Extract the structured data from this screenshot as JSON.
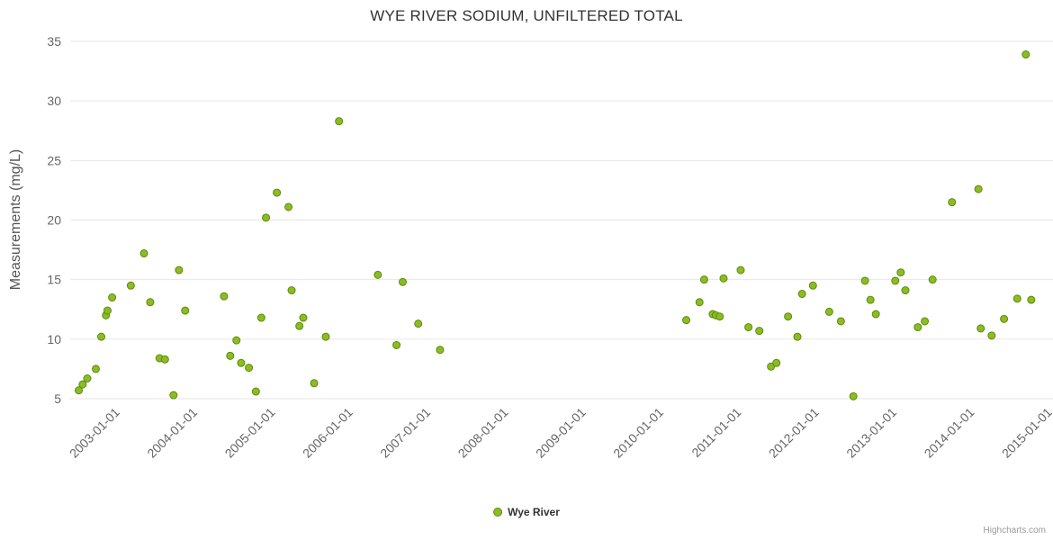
{
  "chart_data": {
    "type": "scatter",
    "title": "WYE RIVER SODIUM, UNFILTERED TOTAL",
    "ylabel": "Measurements (mg/L)",
    "xlabel": "",
    "ylim": [
      5,
      35
    ],
    "y_ticks": [
      5,
      10,
      15,
      20,
      25,
      30,
      35
    ],
    "xlim": [
      2002.4,
      2015.05
    ],
    "x_ticks": [
      {
        "value": 2003,
        "label": "2003-01-01"
      },
      {
        "value": 2004,
        "label": "2004-01-01"
      },
      {
        "value": 2005,
        "label": "2005-01-01"
      },
      {
        "value": 2006,
        "label": "2006-01-01"
      },
      {
        "value": 2007,
        "label": "2007-01-01"
      },
      {
        "value": 2008,
        "label": "2008-01-01"
      },
      {
        "value": 2009,
        "label": "2009-01-01"
      },
      {
        "value": 2010,
        "label": "2010-01-01"
      },
      {
        "value": 2011,
        "label": "2011-01-01"
      },
      {
        "value": 2012,
        "label": "2012-01-01"
      },
      {
        "value": 2013,
        "label": "2013-01-01"
      },
      {
        "value": 2014,
        "label": "2014-01-01"
      },
      {
        "value": 2015,
        "label": "2015-01-01"
      }
    ],
    "grid": "horizontal",
    "gridline_color": "#e6e6e6",
    "axis_label_color": "#666666",
    "legend_position": "bottom-center",
    "credits": "Highcharts.com",
    "series": [
      {
        "name": "Wye River",
        "color": "#8bbc21",
        "border_color": "#5d8a10",
        "marker_radius": 4,
        "points": [
          [
            2002.51,
            5.7
          ],
          [
            2002.56,
            6.2
          ],
          [
            2002.62,
            6.7
          ],
          [
            2002.73,
            7.5
          ],
          [
            2002.8,
            10.2
          ],
          [
            2002.86,
            12.0
          ],
          [
            2002.88,
            12.4
          ],
          [
            2002.94,
            13.5
          ],
          [
            2003.18,
            14.5
          ],
          [
            2003.35,
            17.2
          ],
          [
            2003.43,
            13.1
          ],
          [
            2003.55,
            8.4
          ],
          [
            2003.62,
            8.3
          ],
          [
            2003.73,
            5.3
          ],
          [
            2003.8,
            15.8
          ],
          [
            2003.88,
            12.4
          ],
          [
            2004.38,
            13.6
          ],
          [
            2004.46,
            8.6
          ],
          [
            2004.54,
            9.9
          ],
          [
            2004.6,
            8.0
          ],
          [
            2004.7,
            7.6
          ],
          [
            2004.79,
            5.6
          ],
          [
            2004.86,
            11.8
          ],
          [
            2004.92,
            20.2
          ],
          [
            2005.06,
            22.3
          ],
          [
            2005.21,
            21.1
          ],
          [
            2005.25,
            14.1
          ],
          [
            2005.35,
            11.1
          ],
          [
            2005.4,
            11.8
          ],
          [
            2005.54,
            6.3
          ],
          [
            2005.69,
            10.2
          ],
          [
            2005.86,
            28.3
          ],
          [
            2006.36,
            15.4
          ],
          [
            2006.6,
            9.5
          ],
          [
            2006.68,
            14.8
          ],
          [
            2006.88,
            11.3
          ],
          [
            2007.16,
            9.1
          ],
          [
            2010.33,
            11.6
          ],
          [
            2010.5,
            13.1
          ],
          [
            2010.56,
            15.0
          ],
          [
            2010.67,
            12.1
          ],
          [
            2010.71,
            12.0
          ],
          [
            2010.76,
            11.9
          ],
          [
            2010.81,
            15.1
          ],
          [
            2011.03,
            15.8
          ],
          [
            2011.13,
            11.0
          ],
          [
            2011.27,
            10.7
          ],
          [
            2011.42,
            7.7
          ],
          [
            2011.49,
            8.0
          ],
          [
            2011.64,
            11.9
          ],
          [
            2011.76,
            10.2
          ],
          [
            2011.82,
            13.8
          ],
          [
            2011.96,
            14.5
          ],
          [
            2012.17,
            12.3
          ],
          [
            2012.32,
            11.5
          ],
          [
            2012.48,
            5.2
          ],
          [
            2012.63,
            14.9
          ],
          [
            2012.7,
            13.3
          ],
          [
            2012.77,
            12.1
          ],
          [
            2013.02,
            14.9
          ],
          [
            2013.09,
            15.6
          ],
          [
            2013.15,
            14.1
          ],
          [
            2013.31,
            11.0
          ],
          [
            2013.4,
            11.5
          ],
          [
            2013.5,
            15.0
          ],
          [
            2013.75,
            21.5
          ],
          [
            2014.09,
            22.6
          ],
          [
            2014.12,
            10.9
          ],
          [
            2014.26,
            10.3
          ],
          [
            2014.42,
            11.7
          ],
          [
            2014.59,
            13.4
          ],
          [
            2014.7,
            33.9
          ],
          [
            2014.77,
            13.3
          ]
        ]
      }
    ]
  }
}
